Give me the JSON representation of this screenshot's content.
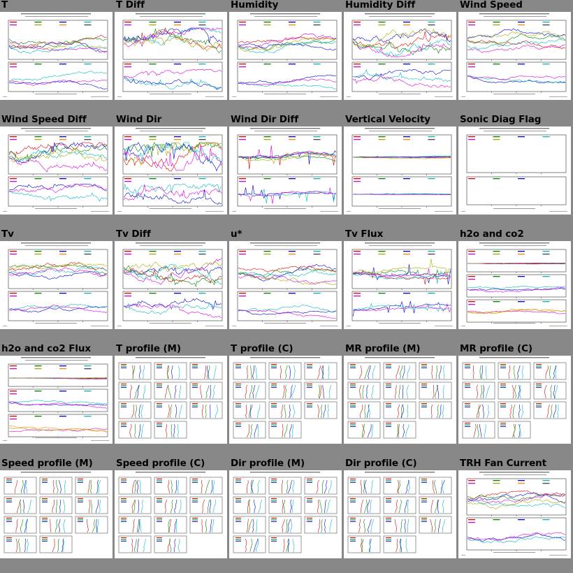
{
  "page": {
    "background": "#888888"
  },
  "tiles": [
    {
      "title": "T",
      "kind": "timeseries",
      "header": "T (M and C towers) 2012 Nov 11 - Nov 13"
    },
    {
      "title": "T Diff",
      "kind": "diff",
      "header": "T (M and C towers), referenced to bottom) 2012 Nov 11 - Nov 13"
    },
    {
      "title": "Humidity",
      "kind": "timeseries",
      "header": "RH (M and C towers) 2012 Nov 11 - Nov 13"
    },
    {
      "title": "Humidity Diff",
      "kind": "diff",
      "header": "RH (M and C towers) 2012 Nov 11 - Nov 13"
    },
    {
      "title": "Wind Speed",
      "kind": "timeseries",
      "header": "spd (M and C towers) 2012 Nov 11 - Nov 13"
    },
    {
      "title": "Wind Speed Diff",
      "kind": "diff",
      "header": "spd (M and C towers), referenced to bottom) 2012 Nov 11 - Nov 13"
    },
    {
      "title": "Wind Dir",
      "kind": "dir",
      "header": "dir (M and C towers) 2012 Nov 11 - Nov 13"
    },
    {
      "title": "Wind Dir Diff",
      "kind": "dirdiff",
      "header": "dir (M and C towers), referenced to bottom) 2012 Nov 11 - Nov 13"
    },
    {
      "title": "Vertical Velocity",
      "kind": "flat",
      "header": "w (M and C towers) 2012 Nov 11 - Nov 13"
    },
    {
      "title": "Sonic Diag Flag",
      "kind": "empty",
      "header": "diag (M and C towers) 2012 Nov 11 - Nov 13"
    },
    {
      "title": "Tv",
      "kind": "timeseries",
      "header": "tc (M and C towers) 2012 Nov 11 - Nov 13"
    },
    {
      "title": "Tv Diff",
      "kind": "diff",
      "header": "tc (M and C towers), referenced to bottom) 2012 Nov 11 - Nov 13"
    },
    {
      "title": "u*",
      "kind": "timeseries",
      "header": "u* (M and C towers) 2012 Nov 11 - Nov 13"
    },
    {
      "title": "Tv Flux",
      "kind": "flux",
      "header": "w'tc' (M and C towers) 2012 Nov 11 - Nov 13"
    },
    {
      "title": "h2o and co2",
      "kind": "three",
      "header": "h2o_co2 2012 Nov 11 - Nov 13"
    },
    {
      "title": "h2o and co2 Flux",
      "kind": "three",
      "header": "fluxes Flux 2012 Nov 11 - Nov 13"
    },
    {
      "title": "T profile (M)",
      "kind": "profile",
      "header": "1/2 Hour Average T Profiles; offsets = (n)*0.16 degC"
    },
    {
      "title": "T profile (C)",
      "kind": "profile",
      "header": "1/2 Hour Average T Profiles; offsets = (n)*0.16 degC"
    },
    {
      "title": "MR profile (M)",
      "kind": "profile",
      "header": "1/2 Hour Average MR Profiles; offsets = (n)*0.068 g/kg"
    },
    {
      "title": "MR profile (C)",
      "kind": "profile",
      "header": "1/2 Hour Average MR Profiles; offsets = (n)*0.068 g/kg"
    },
    {
      "title": "Speed profile (M)",
      "kind": "profile",
      "header": "1/2 Hour Average spd.Spd Profiles; offsets = (n)*0.24 m/s"
    },
    {
      "title": "Speed profile (C)",
      "kind": "profile",
      "header": "1/2 Hour Average spd.Spd Profiles; offsets = (n)*0.18 m/s"
    },
    {
      "title": "Dir profile (M)",
      "kind": "profile",
      "header": "1/2 Hour Average dir.Dir Profiles; offsets = (n)*9 deg"
    },
    {
      "title": "Dir profile (C)",
      "kind": "profile",
      "header": "1/2 Hour Average dir.Dir Profiles; offsets = (n)*7.2 deg"
    },
    {
      "title": "TRH Fan Current",
      "kind": "fan",
      "header": "Ifan (M and C towers) 2012 Nov 11 - Nov 13"
    }
  ],
  "series_colors": [
    "#e00000",
    "#008800",
    "#0000dd",
    "#00bbbb",
    "#dd00dd",
    "#aaaa00",
    "#ff8800",
    "#444444",
    "#88aa00"
  ]
}
